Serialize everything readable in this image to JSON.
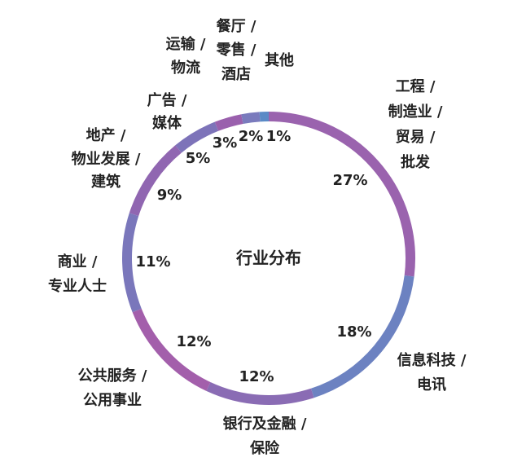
{
  "chart_data": {
    "type": "donut",
    "title": "行业分布",
    "categories": [
      [
        "工程 /",
        "制造业 /",
        "贸易 /",
        "批发"
      ],
      [
        "信息科技 /",
        "电讯"
      ],
      [
        "银行及金融 /",
        "保险"
      ],
      [
        "公共服务 /",
        "公用事业"
      ],
      [
        "商业 /",
        "专业人士"
      ],
      [
        "地产 /",
        "物业发展 /",
        "建筑"
      ],
      [
        "广告 /",
        "媒体"
      ],
      [
        "运输 /",
        "物流"
      ],
      [
        "餐厅 /",
        "零售 /",
        "酒店"
      ],
      [
        "其他"
      ]
    ],
    "values": [
      27,
      18,
      12,
      12,
      11,
      9,
      5,
      3,
      2,
      1
    ],
    "value_labels": [
      "27%",
      "18%",
      "12%",
      "12%",
      "11%",
      "9%",
      "5%",
      "3%",
      "2%",
      "1%"
    ],
    "colors": [
      "#9a63ae",
      "#6c82c1",
      "#8a6cb4",
      "#a35fab",
      "#7a77bb",
      "#9066b1",
      "#7d73b9",
      "#9a60ad",
      "#7a7bbd",
      "#5a8ac6"
    ]
  }
}
